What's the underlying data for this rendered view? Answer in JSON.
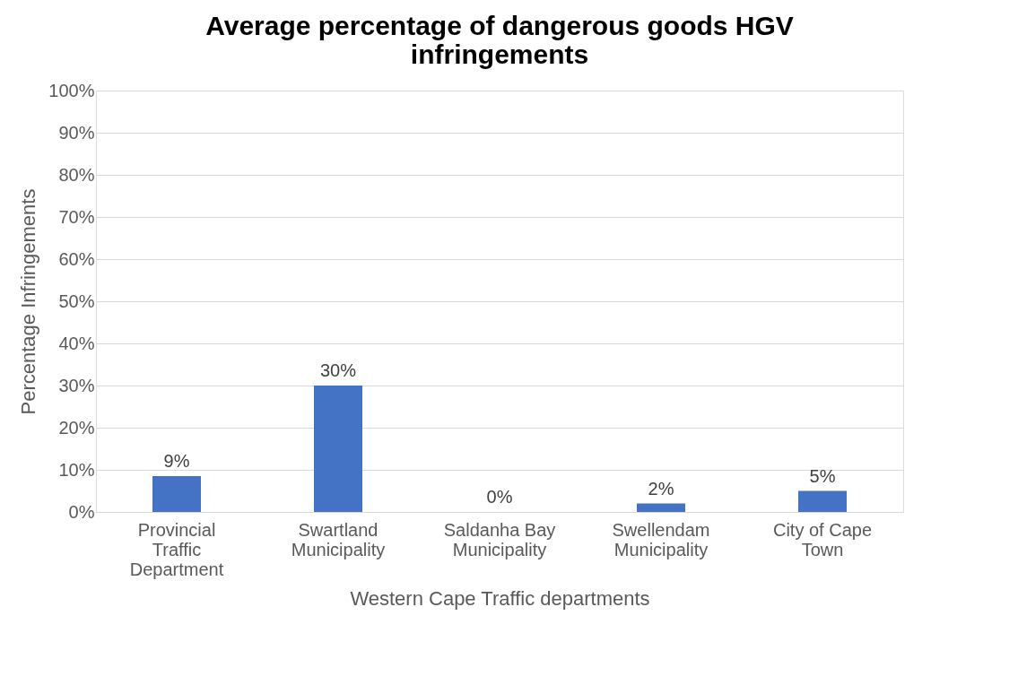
{
  "chart_data": {
    "type": "bar",
    "title": "Average percentage of dangerous goods HGV infringements",
    "xlabel": "Western Cape Traffic departments",
    "ylabel": "Percentage Infringements",
    "categories": [
      "Provincial Traffic Department",
      "Swartland Municipality",
      "Saldanha Bay Municipality",
      "Swellendam Municipality",
      "City of Cape Town"
    ],
    "values": [
      8.5,
      30,
      0,
      2,
      5
    ],
    "value_labels": [
      "9%",
      "30%",
      "0%",
      "2%",
      "5%"
    ],
    "color": "#4472c4",
    "ylim": [
      0,
      100
    ],
    "yticks": [
      {
        "value": 0,
        "label": "0%"
      },
      {
        "value": 10,
        "label": "10%"
      },
      {
        "value": 20,
        "label": "20%"
      },
      {
        "value": 30,
        "label": "30%"
      },
      {
        "value": 40,
        "label": "40%"
      },
      {
        "value": 50,
        "label": "50%"
      },
      {
        "value": 60,
        "label": "60%"
      },
      {
        "value": 70,
        "label": "70%"
      },
      {
        "value": 80,
        "label": "80%"
      },
      {
        "value": 90,
        "label": "90%"
      },
      {
        "value": 100,
        "label": "100%"
      }
    ],
    "grid": "y"
  }
}
